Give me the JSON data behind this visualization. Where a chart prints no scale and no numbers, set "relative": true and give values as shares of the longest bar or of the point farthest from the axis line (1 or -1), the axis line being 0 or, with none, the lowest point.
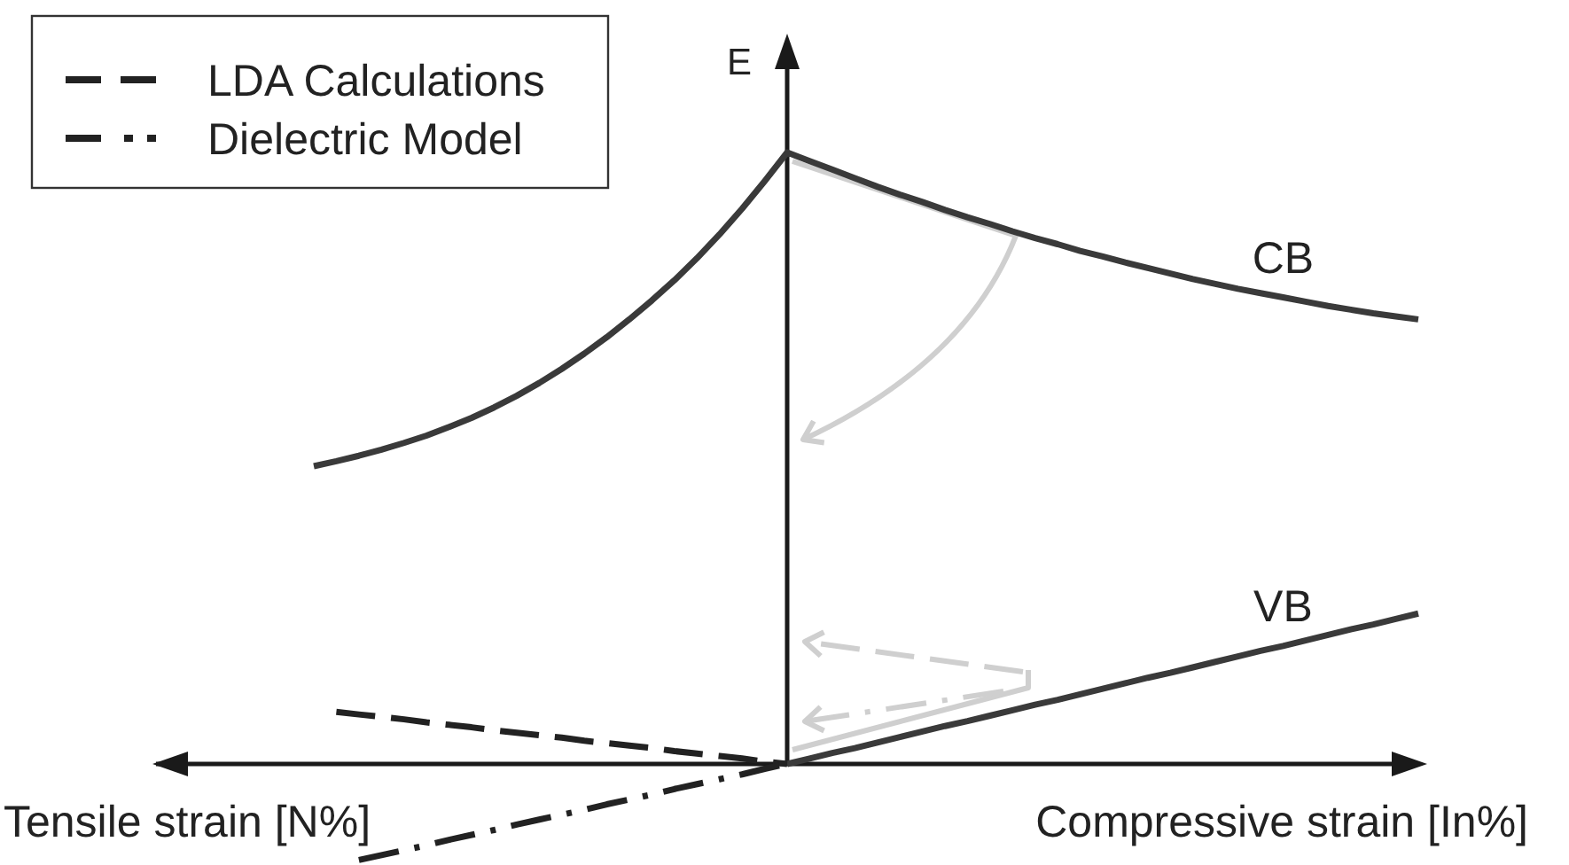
{
  "chart_data": {
    "type": "line",
    "relative": true,
    "ylabel": "E",
    "legend": "top left",
    "line_style": "solid",
    "categories": [
      null,
      null,
      null,
      null,
      null,
      null,
      null,
      null,
      null,
      null,
      null,
      null,
      null,
      null,
      null,
      null,
      null,
      null,
      null,
      null,
      null,
      null,
      null,
      null,
      null,
      null,
      null,
      null,
      null,
      null,
      null,
      null,
      null,
      null,
      null,
      null,
      null,
      null,
      null,
      null,
      null,
      null,
      null,
      null,
      null,
      null,
      null,
      null,
      null,
      null,
      null,
      null,
      null,
      null,
      null,
      null,
      null
    ],
    "series": [
      {
        "name": "CB",
        "color": "#3a3a3a",
        "values": [
          null,
          null,
          null,
          null,
          null,
          null,
          null,
          0.487,
          0.495,
          0.504,
          0.514,
          0.525,
          0.537,
          0.551,
          0.566,
          0.583,
          0.602,
          0.623,
          0.646,
          0.671,
          0.698,
          0.727,
          0.758,
          0.791,
          0.827,
          0.866,
          0.908,
          0.953,
          1,
          0.986,
          0.972,
          0.958,
          0.944,
          0.931,
          0.919,
          0.906,
          0.894,
          0.883,
          0.871,
          0.86,
          0.85,
          0.839,
          0.83,
          0.82,
          0.811,
          0.802,
          0.793,
          0.785,
          0.777,
          0.77,
          0.763,
          0.756,
          0.749,
          0.743,
          0.737,
          0.732,
          0.727
        ]
      },
      {
        "name": "VB",
        "color": "#3a3a3a",
        "values": [
          null,
          null,
          null,
          null,
          null,
          null,
          null,
          null,
          null,
          null,
          null,
          null,
          null,
          null,
          null,
          null,
          null,
          null,
          null,
          null,
          null,
          null,
          null,
          null,
          null,
          null,
          null,
          null,
          0,
          0.009,
          0.018,
          0.026,
          0.035,
          0.044,
          0.053,
          0.062,
          0.07,
          0.079,
          0.088,
          0.097,
          0.105,
          0.114,
          0.123,
          0.132,
          0.141,
          0.149,
          0.158,
          0.167,
          0.176,
          0.185,
          0.193,
          0.202,
          0.211,
          0.22,
          0.228,
          0.237,
          0.246
        ]
      },
      {
        "name": "LDA Calculations",
        "color": "#222222",
        "line_style": "dashed",
        "values": [
          null,
          null,
          null,
          null,
          null,
          null,
          null,
          null,
          0.085,
          0.081,
          0.077,
          0.073,
          0.068,
          0.064,
          0.06,
          0.055,
          0.051,
          0.047,
          0.043,
          0.038,
          0.034,
          0.03,
          0.026,
          0.021,
          0.017,
          0.013,
          0.009,
          0.004,
          0,
          null,
          null,
          null,
          null,
          null,
          null,
          null,
          null,
          null,
          null,
          null,
          null,
          null,
          null,
          null,
          null,
          null,
          null,
          null,
          null,
          null,
          null,
          null,
          null,
          null,
          null,
          null,
          null
        ]
      },
      {
        "name": "Dielectric Model",
        "color": "#222222",
        "line_style": "dashdot",
        "values": [
          null,
          null,
          null,
          null,
          null,
          null,
          null,
          null,
          null,
          -0.157,
          -0.149,
          -0.141,
          -0.133,
          -0.124,
          -0.116,
          -0.108,
          -0.099,
          -0.091,
          -0.083,
          -0.075,
          -0.066,
          -0.058,
          -0.05,
          -0.041,
          -0.033,
          -0.025,
          -0.017,
          -0.008,
          0,
          null,
          null,
          null,
          null,
          null,
          null,
          null,
          null,
          null,
          null,
          null,
          null,
          null,
          null,
          null,
          null,
          null,
          null,
          null,
          null,
          null,
          null,
          null,
          null,
          null,
          null,
          null,
          null
        ]
      }
    ],
    "annotations": [
      "Tensile strain [N%]",
      "Compressive strain [In%]"
    ]
  }
}
